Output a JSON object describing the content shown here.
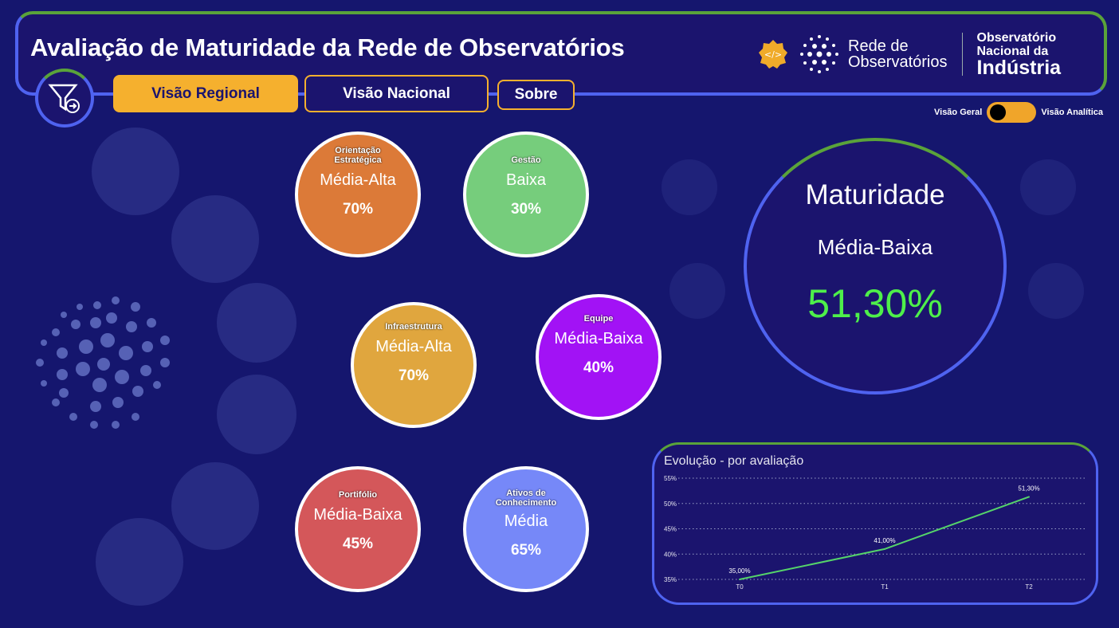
{
  "header": {
    "title": "Avaliação de Maturidade da Rede de Observatórios"
  },
  "tabs": [
    {
      "label": "Visão Regional",
      "active": true
    },
    {
      "label": "Visão Nacional",
      "active": false
    },
    {
      "label": "Sobre",
      "active": false
    }
  ],
  "logos": {
    "rede_line1": "Rede de",
    "rede_line2": "Observatórios",
    "oni_line1": "Observatório",
    "oni_line2": "Nacional da",
    "oni_line3": "Indústria"
  },
  "toggle": {
    "left_label": "Visão Geral",
    "right_label": "Visão Analítica",
    "state": "Visão Geral"
  },
  "dimensions": [
    {
      "category": "Orientação Estratégica",
      "level": "Média-Alta",
      "percent": "70%",
      "color": "#dc7a38"
    },
    {
      "category": "Gestão",
      "level": "Baixa",
      "percent": "30%",
      "color": "#76cd7c"
    },
    {
      "category": "Infraestrutura",
      "level": "Média-Alta",
      "percent": "70%",
      "color": "#e0a63e"
    },
    {
      "category": "Equipe",
      "level": "Média-Baixa",
      "percent": "40%",
      "color": "#a212f5"
    },
    {
      "category": "Portifólio",
      "level": "Média-Baixa",
      "percent": "45%",
      "color": "#d4575a"
    },
    {
      "category": "Ativos de Conhecimento",
      "level": "Média",
      "percent": "65%",
      "color": "#7688f8"
    }
  ],
  "maturity": {
    "title": "Maturidade",
    "level": "Média-Baixa",
    "percent": "51,30%",
    "percent_color": "#4ef04a"
  },
  "chart_data": {
    "type": "line",
    "title": "Evolução - por avaliação",
    "categories": [
      "T0",
      "T1",
      "T2"
    ],
    "values": [
      35.0,
      41.0,
      51.3
    ],
    "data_labels": [
      "35,00%",
      "41,00%",
      "51,30%"
    ],
    "yticks": [
      "35%",
      "40%",
      "45%",
      "50%",
      "55%"
    ],
    "ylim": [
      35,
      55
    ],
    "grid": true,
    "line_color": "#55d46a"
  }
}
